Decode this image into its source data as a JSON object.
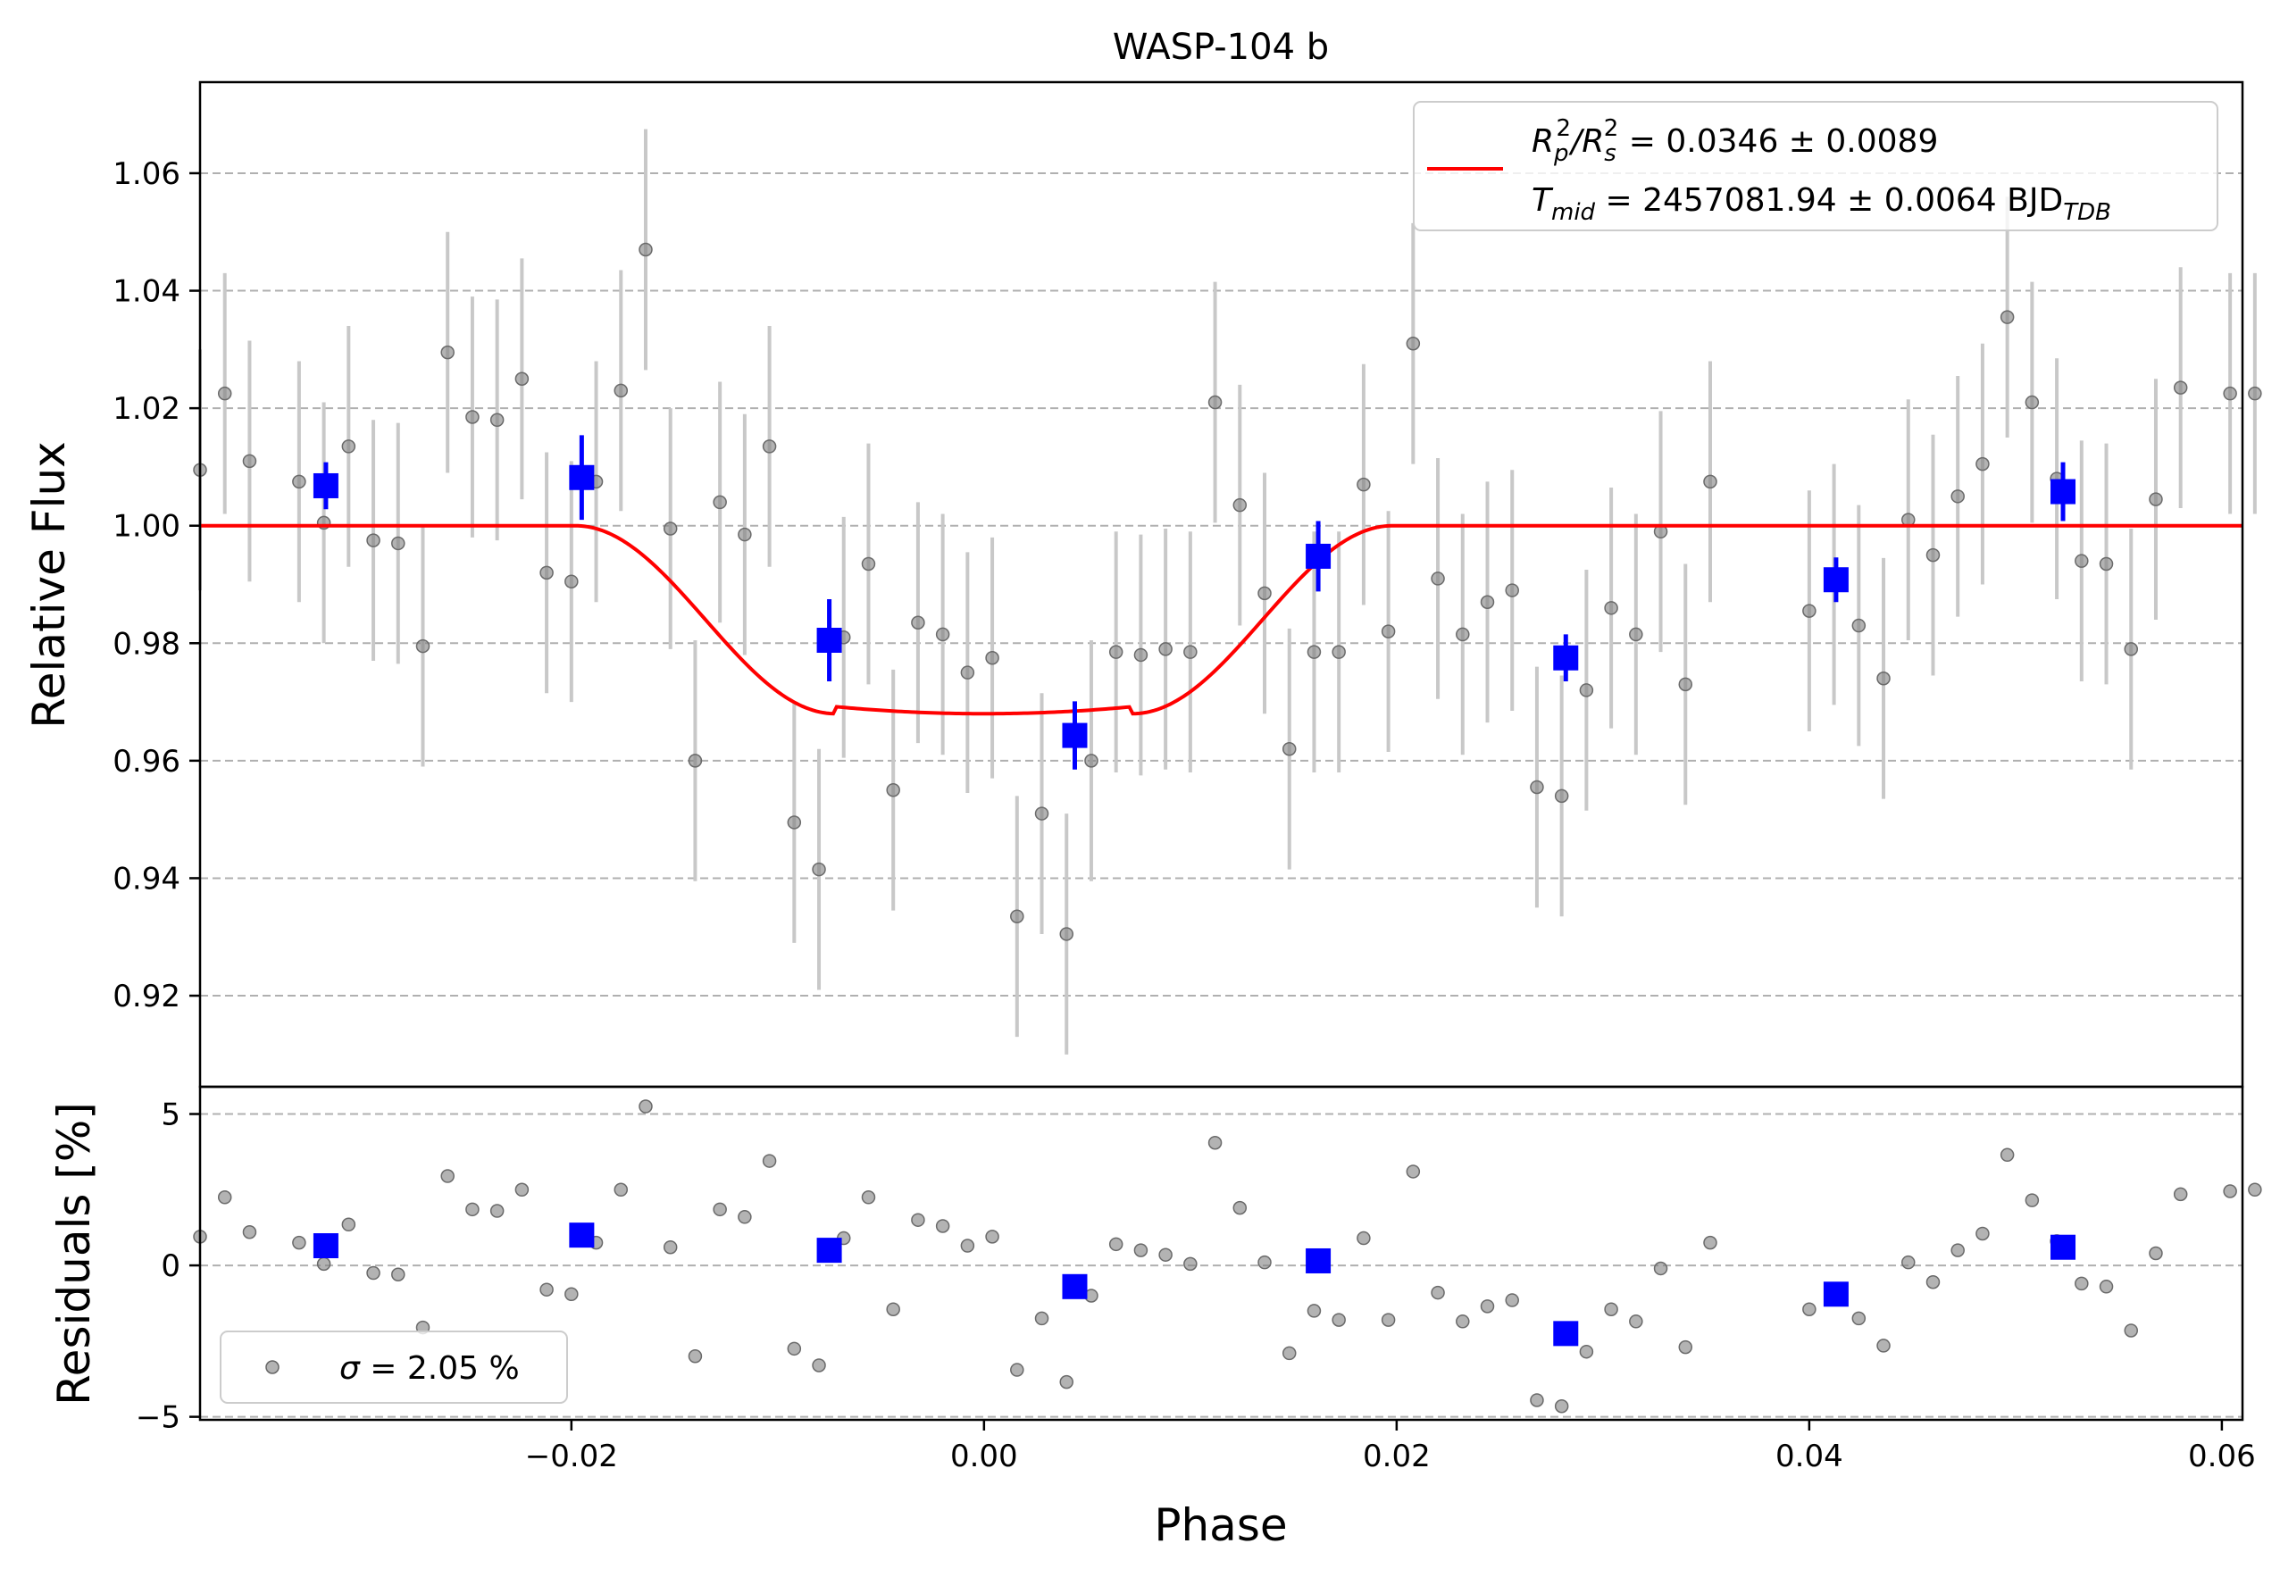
{
  "chart_data": {
    "type": "scatter",
    "title": "WASP-104 b",
    "xlabel": "Phase",
    "xlim": [
      -0.038,
      0.061
    ],
    "xticks": [
      -0.02,
      0.0,
      0.02,
      0.04,
      0.06
    ],
    "xtick_labels": [
      "−0.02",
      "0.00",
      "0.02",
      "0.04",
      "0.06"
    ],
    "grid": "horizontal dashed",
    "colors": {
      "raw": "#808080",
      "raw_err": "#c8c8c8",
      "binned": "#0000ff",
      "model": "#ff0000",
      "grid": "#b0b0b0"
    },
    "top_panel": {
      "ylabel": "Relative Flux",
      "ylim": [
        0.9045,
        1.0755
      ],
      "yticks": [
        0.92,
        0.94,
        0.96,
        0.98,
        1.0,
        1.02,
        1.04,
        1.06
      ],
      "ytick_labels": [
        "0.92",
        "0.94",
        "0.96",
        "0.98",
        "1.00",
        "1.02",
        "1.04",
        "1.06"
      ],
      "legend": {
        "placement": "upper right",
        "line1_main": "R",
        "line1_sub1": "p",
        "line1_sup1": "2",
        "line1_slash": "/R",
        "line1_sub2": "s",
        "line1_sup2": "2",
        "line1_value": " = 0.0346 ± 0.0089",
        "line2_main": "T",
        "line2_sub": "mid",
        "line2_value": " = 2457081.94 ± 0.0064 BJD",
        "line2_sub2": "TDB"
      },
      "model": {
        "name": "transit model",
        "baseline": 1.0,
        "depth_min": 0.968,
        "ingress_start": -0.0198,
        "flat_start": -0.0072,
        "flat_end": 0.0072,
        "egress_end": 0.0198
      },
      "raw_points": {
        "x": [
          -0.038,
          -0.0368,
          -0.0356,
          -0.0332,
          -0.032,
          -0.0308,
          -0.0296,
          -0.0284,
          -0.0272,
          -0.026,
          -0.0248,
          -0.0236,
          -0.0224,
          -0.0212,
          -0.02,
          -0.0188,
          -0.0176,
          -0.0164,
          -0.0152,
          -0.014,
          -0.0128,
          -0.0116,
          -0.0104,
          -0.0092,
          -0.008,
          -0.0068,
          -0.0056,
          -0.0044,
          -0.0032,
          -0.002,
          -0.0008,
          0.0004,
          0.0016,
          0.0028,
          0.004,
          0.0052,
          0.0064,
          0.0076,
          0.0088,
          0.01,
          0.0112,
          0.0124,
          0.0136,
          0.0148,
          0.016,
          0.0172,
          0.0184,
          0.0196,
          0.0208,
          0.022,
          0.0232,
          0.0244,
          0.0256,
          0.0268,
          0.028,
          0.0292,
          0.0304,
          0.0316,
          0.0328,
          0.034,
          0.0352,
          0.04,
          0.0412,
          0.0424,
          0.0436,
          0.0448,
          0.046,
          0.0472,
          0.0484,
          0.0496,
          0.0508,
          0.052,
          0.0532,
          0.0544,
          0.0556,
          0.0568,
          0.058,
          0.0604,
          0.0616
        ],
        "y": [
          1.0095,
          1.0225,
          1.011,
          1.0075,
          1.0005,
          1.0135,
          0.9975,
          0.997,
          0.9795,
          1.0295,
          1.0185,
          1.018,
          1.025,
          0.992,
          0.9905,
          1.0075,
          1.023,
          1.047,
          0.9995,
          0.96,
          1.004,
          0.9985,
          1.0135,
          0.9495,
          0.9415,
          0.981,
          0.9935,
          0.955,
          0.9835,
          0.9815,
          0.975,
          0.9775,
          0.9335,
          0.951,
          0.9305,
          0.96,
          0.9785,
          0.978,
          0.979,
          0.9785,
          1.021,
          1.0035,
          0.9885,
          0.962,
          0.9785,
          0.9785,
          1.007,
          0.982,
          1.031,
          0.991,
          0.9815,
          0.987,
          0.989,
          0.9555,
          0.954,
          0.972,
          0.986,
          0.9815,
          0.999,
          0.973,
          1.0075,
          0.9855,
          0.99,
          0.983,
          0.974,
          1.001,
          0.995,
          1.005,
          1.0105,
          1.0355,
          1.021,
          1.008,
          0.994,
          0.9935,
          0.979,
          1.0045,
          1.0235,
          1.0225,
          1.0225
        ],
        "err": 0.0205
      },
      "binned_points": {
        "x": [
          -0.0319,
          -0.0195,
          -0.0075,
          0.0044,
          0.0162,
          0.0282,
          0.0413,
          0.0523
        ],
        "y": [
          1.0068,
          1.0082,
          0.9805,
          0.9643,
          0.9948,
          0.9775,
          0.9908,
          1.0058
        ],
        "err": [
          0.004,
          0.0072,
          0.007,
          0.0058,
          0.006,
          0.004,
          0.0038,
          0.005
        ]
      }
    },
    "bottom_panel": {
      "ylabel": "Residuals [%]",
      "ylim": [
        -5.1,
        5.9
      ],
      "yticks": [
        -5,
        0,
        5
      ],
      "ytick_labels": [
        "−5",
        "0",
        "5"
      ],
      "legend": {
        "placement": "lower left",
        "sigma_symbol": "σ",
        "sigma_value": " = 2.05 %"
      },
      "raw_residuals": [
        0.95,
        2.25,
        1.1,
        0.75,
        0.05,
        1.35,
        -0.25,
        -0.3,
        -2.05,
        2.95,
        1.85,
        1.8,
        2.5,
        -0.8,
        -0.95,
        0.75,
        2.5,
        5.25,
        0.6,
        -3.0,
        1.85,
        1.6,
        3.45,
        -2.75,
        -3.3,
        0.9,
        2.25,
        -1.45,
        1.5,
        1.3,
        0.65,
        0.95,
        -3.45,
        -1.75,
        -3.85,
        -1.0,
        0.7,
        0.5,
        0.35,
        0.05,
        4.05,
        1.9,
        0.1,
        -2.9,
        -1.5,
        -1.8,
        0.9,
        -1.8,
        3.1,
        -0.9,
        -1.85,
        -1.35,
        -1.15,
        -4.45,
        -4.65,
        -2.85,
        -1.45,
        -1.85,
        -0.1,
        -2.7,
        0.75,
        -1.45,
        -1.0,
        -1.75,
        -2.65,
        0.1,
        -0.55,
        0.5,
        1.05,
        3.65,
        2.15,
        0.8,
        -0.6,
        -0.7,
        -2.15,
        0.4,
        2.35,
        2.45,
        2.5
      ],
      "binned_residuals": [
        0.65,
        1.0,
        0.5,
        -0.7,
        0.15,
        -2.25,
        -0.95,
        0.6
      ]
    }
  }
}
